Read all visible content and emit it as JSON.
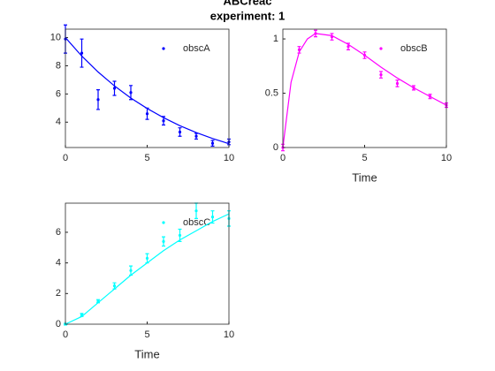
{
  "title": "ABCreac",
  "subtitle": "experiment: 1",
  "chart_data": [
    {
      "type": "scatter",
      "xlim": [
        0,
        10
      ],
      "xticks": [
        0,
        5,
        10
      ],
      "ylim": [
        2.2,
        10.6
      ],
      "yticks": [
        4,
        6,
        8,
        10
      ],
      "legend": "top-right",
      "series": [
        {
          "name": "obscA",
          "color": "#0000ff",
          "kind": "errorbar",
          "x": [
            0,
            1,
            2,
            3,
            4,
            5,
            6,
            7,
            8,
            9,
            10
          ],
          "values": [
            9.9,
            8.9,
            5.6,
            6.4,
            6.1,
            4.6,
            4.1,
            3.3,
            3.0,
            2.5,
            2.6
          ],
          "errors": [
            1.0,
            1.0,
            0.7,
            0.5,
            0.5,
            0.4,
            0.3,
            0.3,
            0.2,
            0.2,
            0.2
          ]
        },
        {
          "color": "#0000ff",
          "kind": "line",
          "x": [
            0,
            1,
            2,
            3,
            4,
            5,
            6,
            7,
            8,
            9,
            10
          ],
          "values": [
            10,
            8.69,
            7.56,
            6.57,
            5.71,
            4.97,
            4.32,
            3.75,
            3.26,
            2.84,
            2.47
          ]
        }
      ]
    },
    {
      "type": "scatter",
      "xlabel": "Time",
      "xlim": [
        0,
        10
      ],
      "xticks": [
        0,
        5,
        10
      ],
      "ylim": [
        0,
        1.09
      ],
      "yticks": [
        0,
        0.5,
        1
      ],
      "legend": "top-right",
      "series": [
        {
          "name": "obscB",
          "color": "#ff00ff",
          "kind": "errorbar",
          "x": [
            0,
            1,
            2,
            3,
            4,
            5,
            6,
            7,
            8,
            9,
            10
          ],
          "values": [
            0.0,
            0.9,
            1.05,
            1.02,
            0.93,
            0.85,
            0.67,
            0.59,
            0.55,
            0.47,
            0.39
          ],
          "errors": [
            0.03,
            0.03,
            0.03,
            0.03,
            0.03,
            0.03,
            0.03,
            0.03,
            0.02,
            0.02,
            0.02
          ]
        },
        {
          "color": "#ff00ff",
          "kind": "line",
          "x": [
            0,
            0.5,
            1,
            1.5,
            2,
            3,
            4,
            5,
            6,
            7,
            8,
            9,
            10
          ],
          "values": [
            0,
            0.6,
            0.88,
            1.0,
            1.05,
            1.03,
            0.95,
            0.85,
            0.74,
            0.64,
            0.55,
            0.47,
            0.39
          ]
        }
      ]
    },
    {
      "type": "scatter",
      "xlabel": "Time",
      "xlim": [
        0,
        10
      ],
      "xticks": [
        0,
        5,
        10
      ],
      "ylim": [
        0,
        7.9
      ],
      "yticks": [
        0,
        2,
        4,
        6
      ],
      "legend": "top-right",
      "series": [
        {
          "name": "obscC",
          "color": "#00ffff",
          "kind": "errorbar",
          "x": [
            0,
            1,
            2,
            3,
            4,
            5,
            6,
            7,
            8,
            9,
            10
          ],
          "values": [
            0.0,
            0.6,
            1.5,
            2.5,
            3.5,
            4.3,
            5.4,
            5.8,
            7.4,
            7.0,
            6.9
          ],
          "errors": [
            0.05,
            0.1,
            0.1,
            0.2,
            0.3,
            0.3,
            0.3,
            0.4,
            0.5,
            0.4,
            0.5
          ]
        },
        {
          "color": "#00ffff",
          "kind": "line",
          "x": [
            0,
            1,
            2,
            3,
            4,
            5,
            6,
            7,
            8,
            9,
            10
          ],
          "values": [
            0,
            0.5,
            1.4,
            2.3,
            3.2,
            4.0,
            4.8,
            5.5,
            6.1,
            6.7,
            7.2
          ]
        }
      ]
    }
  ]
}
